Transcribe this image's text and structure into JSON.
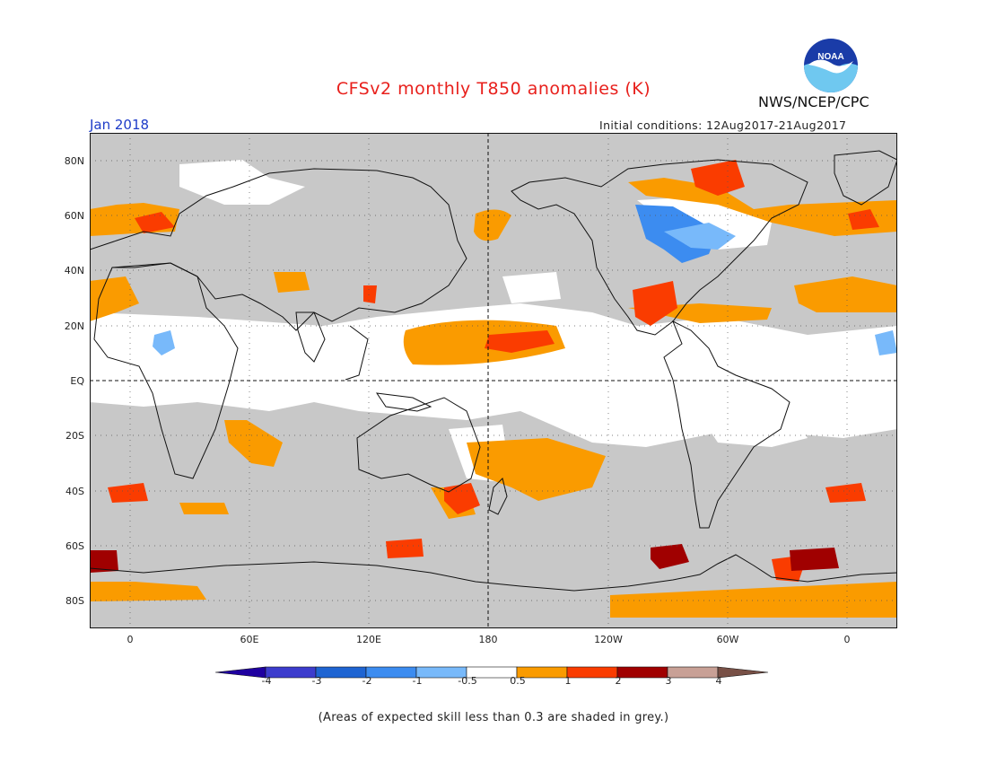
{
  "header": {
    "title": "CFSv2 monthly T850 anomalies (K)",
    "agency": "NWS/NCEP/CPC",
    "valid_month": "Jan 2018",
    "initial_conditions": "Initial conditions:  12Aug2017-21Aug2017",
    "logo_text": "NOAA"
  },
  "map": {
    "lat_labels": [
      "80N",
      "60N",
      "40N",
      "20N",
      "EQ",
      "20S",
      "40S",
      "60S",
      "80S"
    ],
    "lon_labels": [
      "0",
      "60E",
      "120E",
      "180",
      "120W",
      "60W",
      "0"
    ],
    "grey_meaning": "skill < 0.3"
  },
  "colorbar": {
    "labels": [
      "-4",
      "-3",
      "-2",
      "-1",
      "-0.5",
      "0.5",
      "1",
      "2",
      "3",
      "4"
    ],
    "colors": [
      "#1f00a0",
      "#3c3ccd",
      "#1e64d2",
      "#3c8cf0",
      "#78b9fa",
      "#ffffff",
      "#fa9b00",
      "#fa3c00",
      "#a00000",
      "#c8a096",
      "#785046"
    ]
  },
  "footnote": "(Areas of expected skill less than 0.3 are shaded in grey.)"
}
